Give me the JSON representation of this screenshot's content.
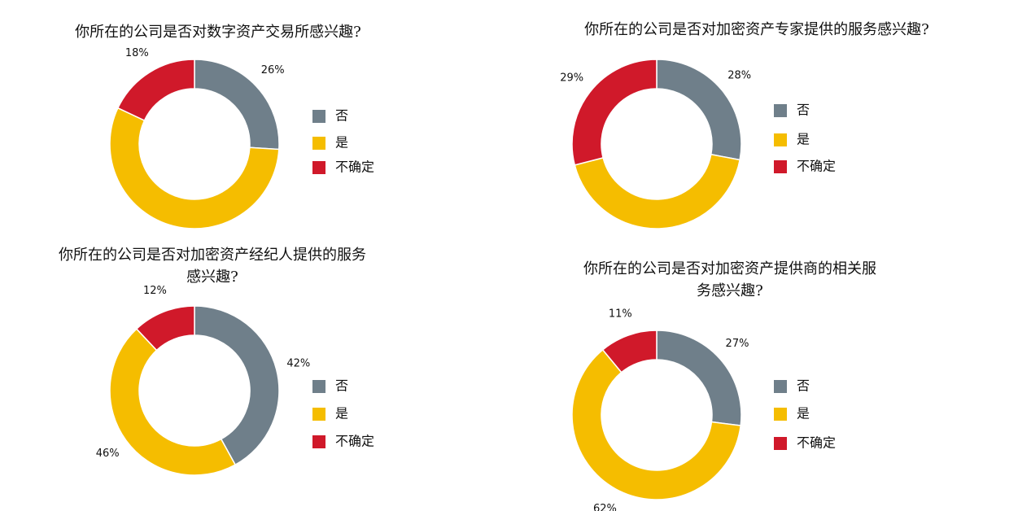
{
  "chart_data": [
    {
      "type": "pie",
      "title": [
        "你所在的公司是否对数字资产交易所感兴趣?"
      ],
      "categories": [
        "否",
        "是",
        "不确定"
      ],
      "values": [
        26,
        56,
        18
      ],
      "value_labels": [
        "26%",
        null,
        "18%"
      ],
      "colors": [
        "#6f7f8a",
        "#f5bd00",
        "#d0192a"
      ]
    },
    {
      "type": "pie",
      "title": [
        "你所在的公司是否对加密资产专家提供的服务感兴趣?"
      ],
      "categories": [
        "否",
        "是",
        "不确定"
      ],
      "values": [
        28,
        43,
        29
      ],
      "value_labels": [
        "28%",
        null,
        "29%"
      ],
      "colors": [
        "#6f7f8a",
        "#f5bd00",
        "#d0192a"
      ]
    },
    {
      "type": "pie",
      "title": [
        "你所在的公司是否对加密资产经纪人提供的服务",
        "感兴趣?"
      ],
      "categories": [
        "否",
        "是",
        "不确定"
      ],
      "values": [
        42,
        46,
        12
      ],
      "value_labels": [
        "42%",
        "46%",
        "12%"
      ],
      "colors": [
        "#6f7f8a",
        "#f5bd00",
        "#d0192a"
      ]
    },
    {
      "type": "pie",
      "title": [
        "你所在的公司是否对加密资产提供商的相关服",
        "务感兴趣?"
      ],
      "categories": [
        "否",
        "是",
        "不确定"
      ],
      "values": [
        27,
        62,
        11
      ],
      "value_labels": [
        "27%",
        "62%",
        "11%"
      ],
      "colors": [
        "#6f7f8a",
        "#f5bd00",
        "#d0192a"
      ]
    }
  ]
}
